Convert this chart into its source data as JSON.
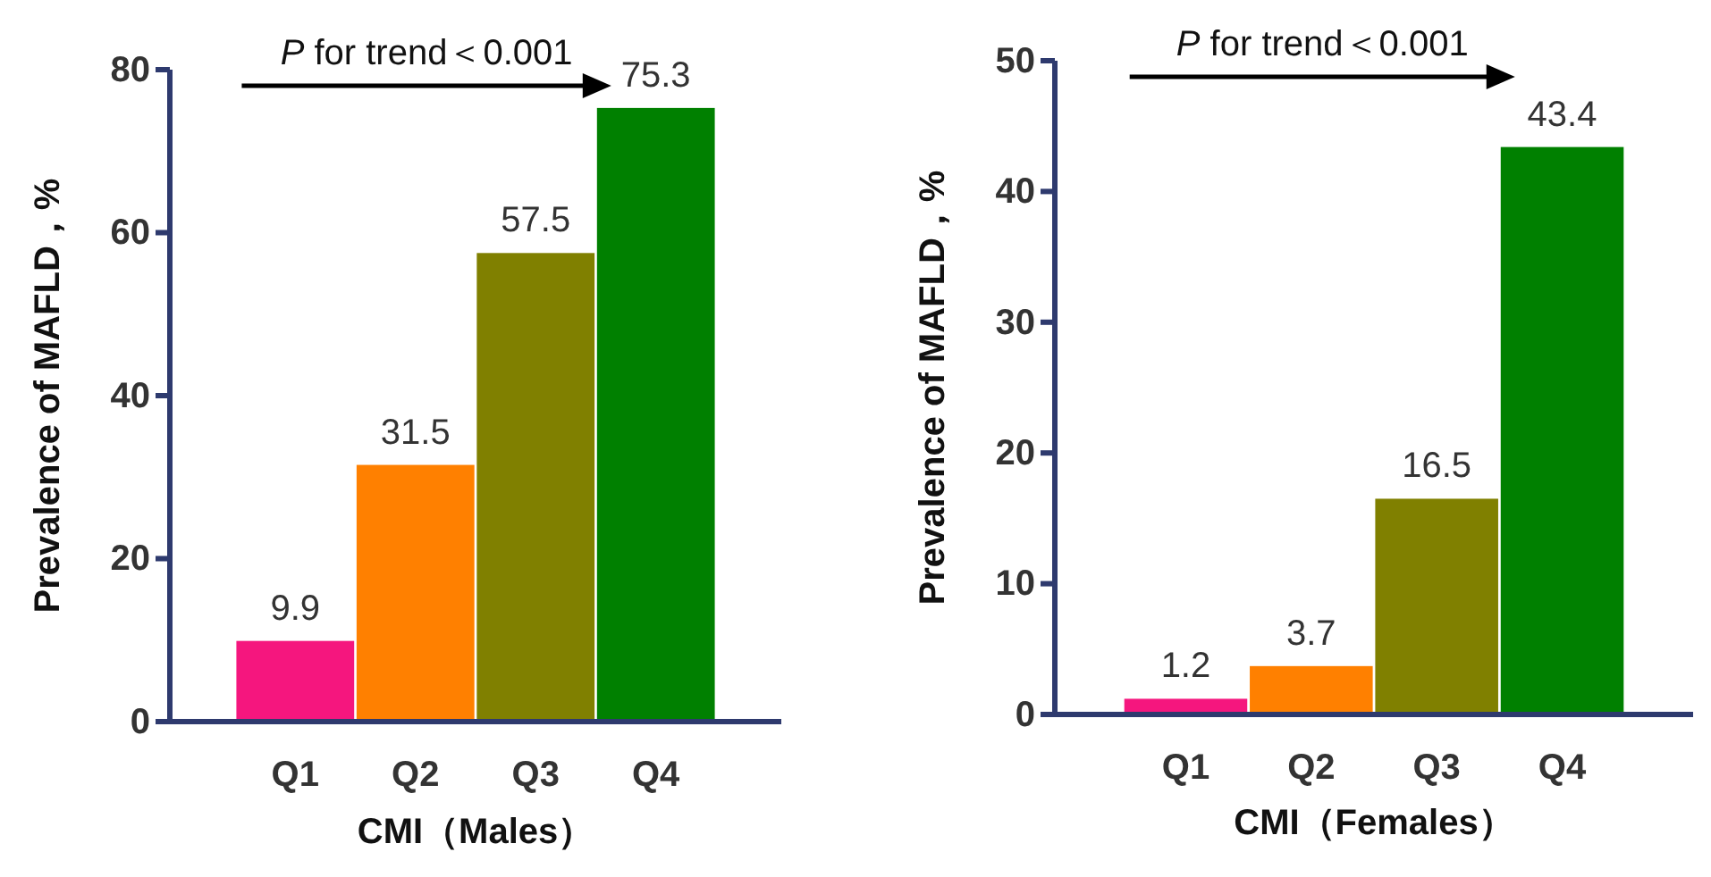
{
  "chart_data": [
    {
      "type": "bar",
      "xlabel": "CMI（Males）",
      "ylabel": "Prevalence of MAFLD，%",
      "categories": [
        "Q1",
        "Q2",
        "Q3",
        "Q4"
      ],
      "values": [
        9.9,
        31.5,
        57.5,
        75.3
      ],
      "colors": [
        "#f5167e",
        "#ff8000",
        "#808000",
        "#008000"
      ],
      "ylim": [
        0,
        80
      ],
      "yticks": [
        0,
        20,
        40,
        60,
        80
      ],
      "data_labels": true,
      "annotations": [
        "P for trend＜0.001"
      ]
    },
    {
      "type": "bar",
      "xlabel": "CMI（Females）",
      "ylabel": "Prevalence of MAFLD，%",
      "categories": [
        "Q1",
        "Q2",
        "Q3",
        "Q4"
      ],
      "values": [
        1.2,
        3.7,
        16.5,
        43.4
      ],
      "colors": [
        "#f5167e",
        "#ff8000",
        "#808000",
        "#008000"
      ],
      "ylim": [
        0,
        50
      ],
      "yticks": [
        0,
        10,
        20,
        30,
        40,
        50
      ],
      "data_labels": true,
      "annotations": [
        "P for trend＜0.001"
      ]
    }
  ]
}
